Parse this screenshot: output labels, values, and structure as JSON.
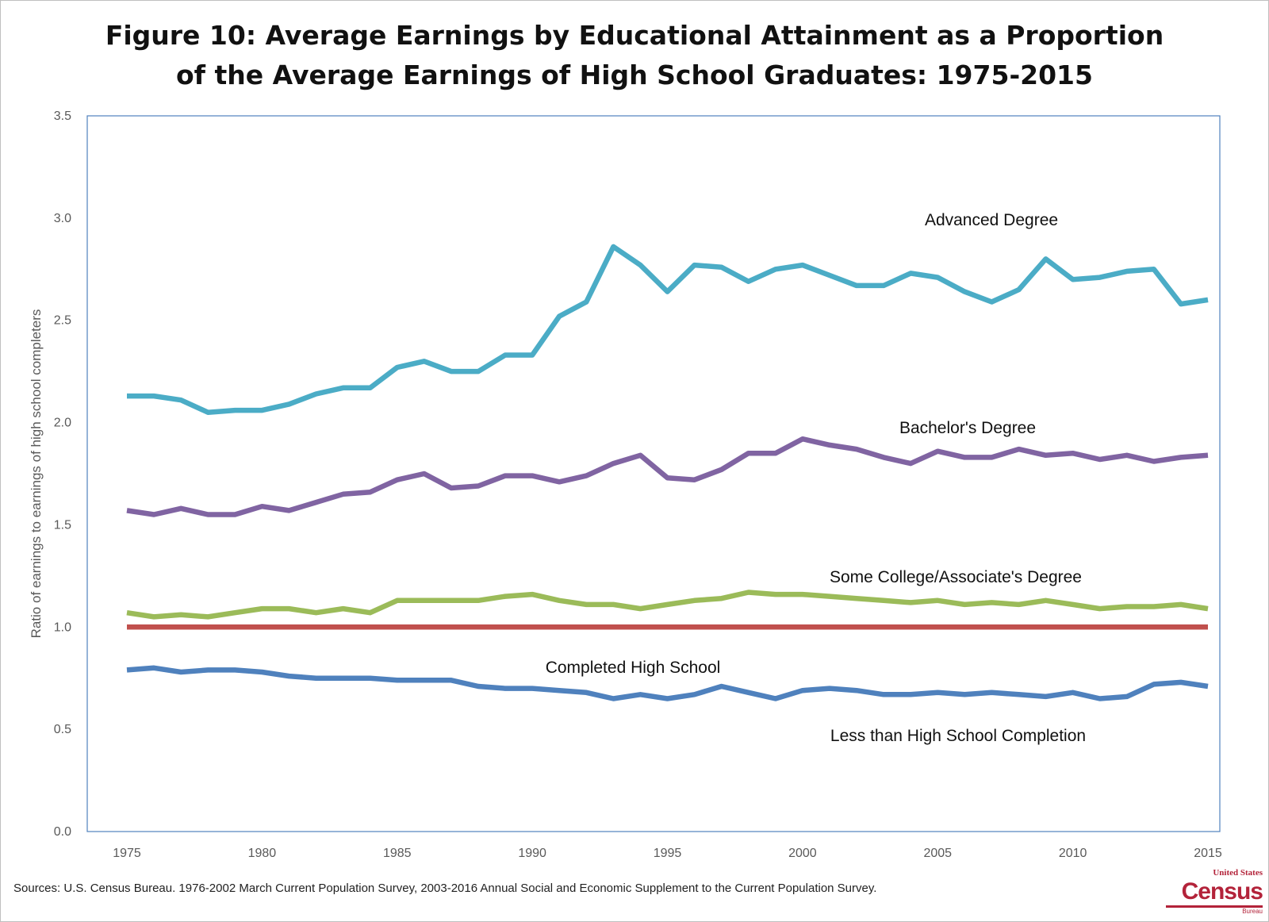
{
  "chart_data": {
    "type": "line",
    "title": "Figure 10: Average Earnings by Educational Attainment as a Proportion of the Average Earnings of High School Graduates: 1975-2015",
    "title_lines": [
      "Figure 10: Average Earnings by Educational Attainment as a Proportion",
      "of the Average Earnings of High School Graduates: 1975-2015"
    ],
    "xlabel": "",
    "ylabel": "Ratio of earnings to earnings of high school completers",
    "xlim": [
      1975,
      2015
    ],
    "ylim": [
      0,
      3.5
    ],
    "xticks": [
      "1975",
      "1980",
      "1985",
      "1990",
      "1995",
      "2000",
      "2005",
      "2010",
      "2015"
    ],
    "yticks": [
      "0.0",
      "0.5",
      "1.0",
      "1.5",
      "2.0",
      "2.5",
      "3.0",
      "3.5"
    ],
    "grid": false,
    "legend": "inline labels",
    "x": [
      1975,
      1976,
      1977,
      1978,
      1979,
      1980,
      1981,
      1982,
      1983,
      1984,
      1985,
      1986,
      1987,
      1988,
      1989,
      1990,
      1991,
      1992,
      1993,
      1994,
      1995,
      1996,
      1997,
      1998,
      1999,
      2000,
      2001,
      2002,
      2003,
      2004,
      2005,
      2006,
      2007,
      2008,
      2009,
      2010,
      2011,
      2012,
      2013,
      2014,
      2015
    ],
    "series": [
      {
        "name": "Advanced Degree",
        "color": "#4bacc6",
        "values": [
          2.13,
          2.13,
          2.11,
          2.05,
          2.06,
          2.06,
          2.09,
          2.14,
          2.17,
          2.17,
          2.27,
          2.3,
          2.25,
          2.25,
          2.33,
          2.33,
          2.52,
          2.59,
          2.86,
          2.77,
          2.64,
          2.77,
          2.76,
          2.69,
          2.75,
          2.77,
          2.72,
          2.67,
          2.67,
          2.73,
          2.71,
          2.64,
          2.59,
          2.65,
          2.8,
          2.7,
          2.71,
          2.74,
          2.75,
          2.58,
          2.6
        ]
      },
      {
        "name": "Bachelor's Degree",
        "color": "#8064a2",
        "values": [
          1.57,
          1.55,
          1.58,
          1.55,
          1.55,
          1.59,
          1.57,
          1.61,
          1.65,
          1.66,
          1.72,
          1.75,
          1.68,
          1.69,
          1.74,
          1.74,
          1.71,
          1.74,
          1.8,
          1.84,
          1.73,
          1.72,
          1.77,
          1.85,
          1.85,
          1.92,
          1.89,
          1.87,
          1.83,
          1.8,
          1.86,
          1.83,
          1.83,
          1.87,
          1.84,
          1.85,
          1.82,
          1.84,
          1.81,
          1.83,
          1.84
        ]
      },
      {
        "name": "Some College/Associate's Degree",
        "color": "#9bbb59",
        "values": [
          1.07,
          1.05,
          1.06,
          1.05,
          1.07,
          1.09,
          1.09,
          1.07,
          1.09,
          1.07,
          1.13,
          1.13,
          1.13,
          1.13,
          1.15,
          1.16,
          1.13,
          1.11,
          1.11,
          1.09,
          1.11,
          1.13,
          1.14,
          1.17,
          1.16,
          1.16,
          1.15,
          1.14,
          1.13,
          1.12,
          1.13,
          1.11,
          1.12,
          1.11,
          1.13,
          1.11,
          1.09,
          1.1,
          1.1,
          1.11,
          1.09
        ]
      },
      {
        "name": "Completed High School",
        "color": "#c0504d",
        "values": [
          1,
          1,
          1,
          1,
          1,
          1,
          1,
          1,
          1,
          1,
          1,
          1,
          1,
          1,
          1,
          1,
          1,
          1,
          1,
          1,
          1,
          1,
          1,
          1,
          1,
          1,
          1,
          1,
          1,
          1,
          1,
          1,
          1,
          1,
          1,
          1,
          1,
          1,
          1,
          1,
          1
        ]
      },
      {
        "name": "Less than High School Completion",
        "color": "#4f81bd",
        "values": [
          0.79,
          0.8,
          0.78,
          0.79,
          0.79,
          0.78,
          0.76,
          0.75,
          0.75,
          0.75,
          0.74,
          0.74,
          0.74,
          0.71,
          0.7,
          0.7,
          0.69,
          0.68,
          0.65,
          0.67,
          0.65,
          0.67,
          0.71,
          0.68,
          0.65,
          0.69,
          0.7,
          0.69,
          0.67,
          0.67,
          0.68,
          0.67,
          0.68,
          0.67,
          0.66,
          0.68,
          0.65,
          0.66,
          0.72,
          0.73,
          0.71
        ]
      }
    ]
  },
  "source": "Sources:  U.S. Census Bureau. 1976-2002 March Current Population Survey, 2003-2016 Annual Social and Economic Supplement to the Current Population Survey.",
  "logo": {
    "line1": "United States",
    "line2": "Census",
    "line3": "Bureau"
  }
}
